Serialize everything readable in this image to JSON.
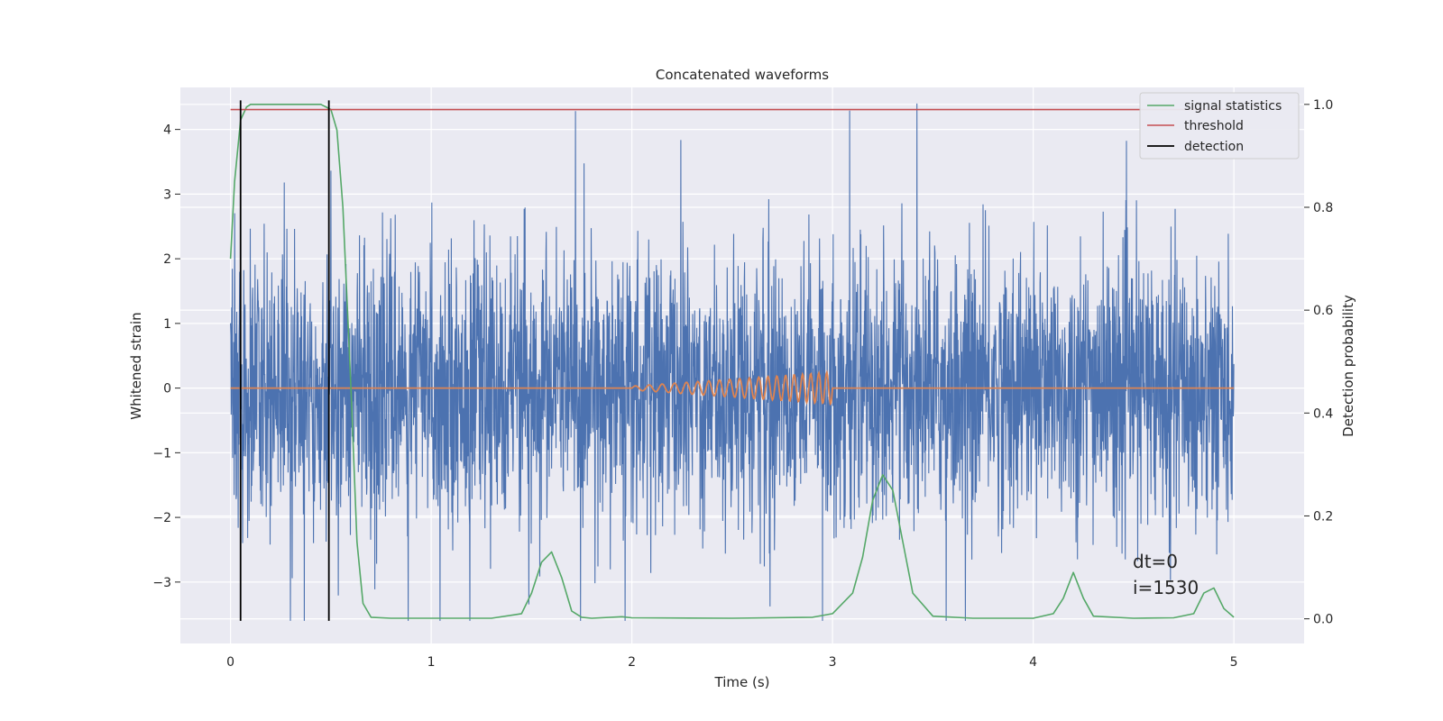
{
  "chart_data": {
    "type": "line",
    "title": "Concatenated waveforms",
    "xlabel": "Time (s)",
    "ylabel": "Whitened strain",
    "ylabel_right": "Detection probability",
    "xlim": [
      -0.25,
      5.35
    ],
    "ylim": [
      -3.95,
      4.65
    ],
    "ylim_right": [
      -0.048,
      1.033
    ],
    "xticks": [
      0,
      1,
      2,
      3,
      4,
      5
    ],
    "yticks": [
      -3,
      -2,
      -1,
      0,
      1,
      2,
      3,
      4
    ],
    "yticks_right": [
      0.0,
      0.2,
      0.4,
      0.6,
      0.8,
      1.0
    ],
    "xtick_labels": [
      "0",
      "1",
      "2",
      "3",
      "4",
      "5"
    ],
    "ytick_labels": [
      "−3",
      "−2",
      "−1",
      "0",
      "1",
      "2",
      "3",
      "4"
    ],
    "ytick_right_labels": [
      "0.0",
      "0.2",
      "0.4",
      "0.6",
      "0.8",
      "1.0"
    ],
    "grid": true,
    "legend_position": "top-right",
    "colors": {
      "strain": "#4c72b0",
      "template": "#dd8452",
      "signal_statistics": "#55a868",
      "threshold": "#c44e52",
      "detection": "#000000",
      "background": "#eaeaf2",
      "grid": "#ffffff"
    },
    "series": [
      {
        "name": "",
        "axis": "left",
        "description_values": "whitened strain noise, approx. range -3.6 to 4.4, time 0 to 5 s",
        "x_range": [
          0,
          5
        ],
        "y_range": [
          -3.6,
          4.4
        ]
      },
      {
        "name": "",
        "axis": "left",
        "x": [
          0,
          2.0,
          2.2,
          2.4,
          2.6,
          2.8,
          3.0,
          3.0,
          5.0
        ],
        "y": [
          0,
          0,
          0.06,
          0.1,
          0.15,
          0.2,
          0.25,
          0,
          0
        ]
      },
      {
        "name": "signal statistics",
        "axis": "right",
        "x": [
          0,
          0.02,
          0.05,
          0.08,
          0.1,
          0.15,
          0.3,
          0.45,
          0.5,
          0.53,
          0.56,
          0.6,
          0.63,
          0.66,
          0.7,
          0.8,
          1.0,
          1.3,
          1.45,
          1.5,
          1.55,
          1.6,
          1.65,
          1.7,
          1.75,
          1.8,
          1.95,
          2.0,
          2.5,
          2.9,
          3.0,
          3.1,
          3.15,
          3.2,
          3.25,
          3.3,
          3.35,
          3.4,
          3.5,
          3.7,
          4.0,
          4.1,
          4.15,
          4.2,
          4.25,
          4.3,
          4.5,
          4.7,
          4.8,
          4.85,
          4.9,
          4.95,
          5.0
        ],
        "y": [
          0.7,
          0.85,
          0.97,
          0.995,
          1.0,
          1.0,
          1.0,
          1.0,
          0.99,
          0.95,
          0.8,
          0.45,
          0.15,
          0.03,
          0.003,
          0.001,
          0.001,
          0.001,
          0.01,
          0.05,
          0.11,
          0.13,
          0.08,
          0.015,
          0.003,
          0.001,
          0.004,
          0.002,
          0.001,
          0.003,
          0.01,
          0.05,
          0.12,
          0.23,
          0.28,
          0.25,
          0.15,
          0.05,
          0.005,
          0.001,
          0.001,
          0.01,
          0.04,
          0.09,
          0.04,
          0.005,
          0.001,
          0.002,
          0.01,
          0.05,
          0.06,
          0.02,
          0.003
        ]
      },
      {
        "name": "threshold",
        "axis": "right",
        "x": [
          0,
          5
        ],
        "y": [
          0.99,
          0.99
        ]
      },
      {
        "name": "detection",
        "axis": "left",
        "x_positions": [
          0.05,
          0.49
        ],
        "y_range": [
          -3.6,
          4.45
        ]
      }
    ],
    "annotation_lines": [
      "dt=0",
      "i=1530"
    ],
    "annotation_position": {
      "x": 4.5,
      "y_top": -2.8
    }
  }
}
